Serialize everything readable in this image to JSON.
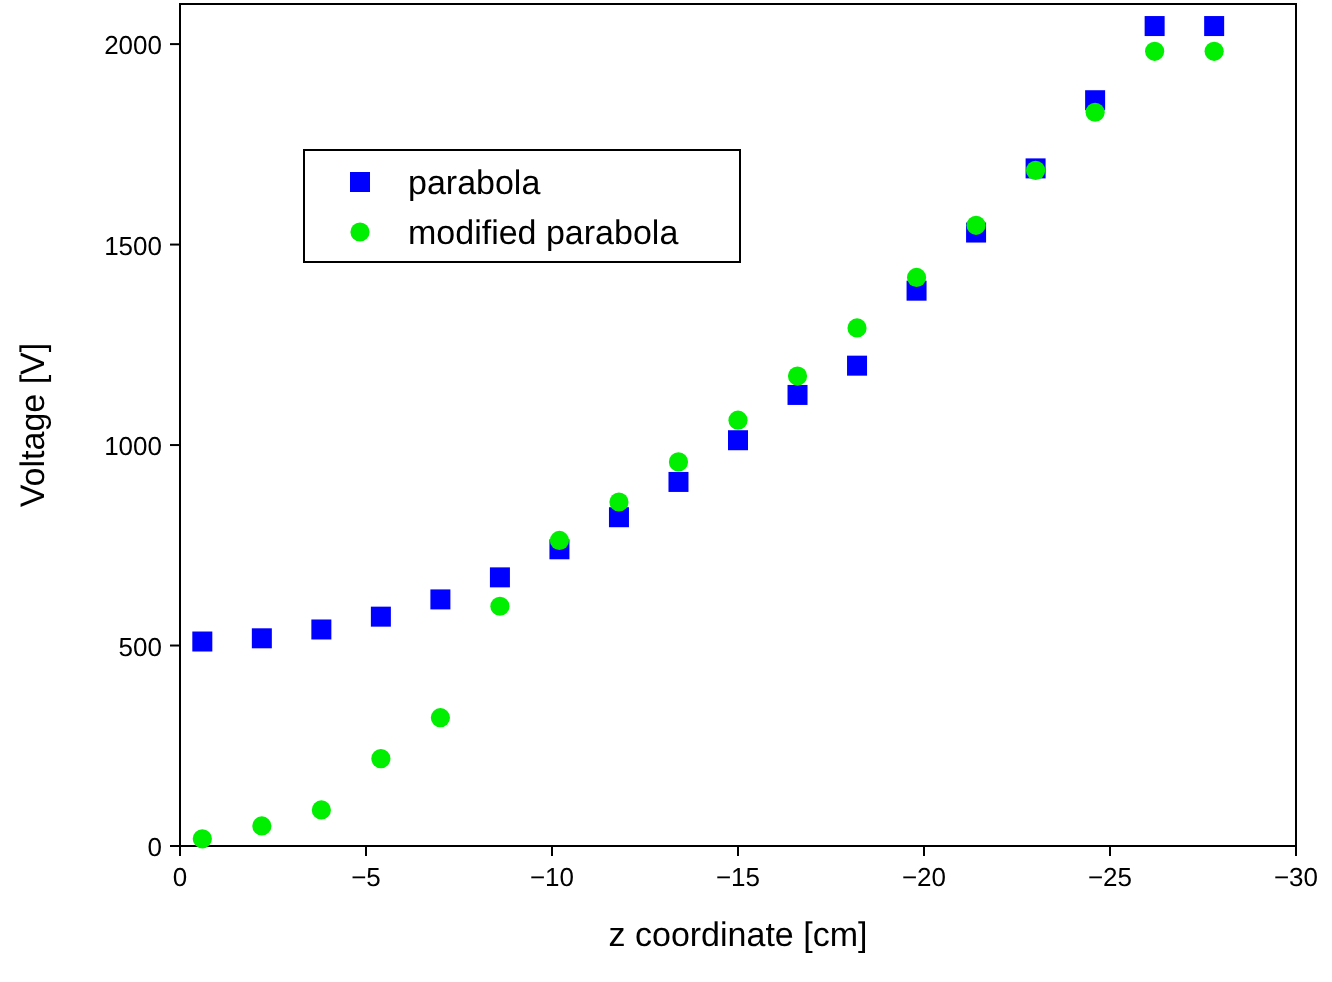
{
  "chart_data": {
    "type": "scatter",
    "xlabel": "z coordinate [cm]",
    "ylabel": "Voltage [V]",
    "x": [
      -0.6,
      -2.2,
      -3.8,
      -5.4,
      -7.0,
      -8.6,
      -10.2,
      -11.8,
      -13.4,
      -15.0,
      -16.6,
      -18.2,
      -19.8,
      -21.4,
      -23.0,
      -24.6,
      -26.2,
      -27.8
    ],
    "series": [
      {
        "name": "parabola",
        "color": "#0000ff",
        "marker": "square",
        "values": [
          510,
          518,
          540,
          572,
          615,
          670,
          740,
          820,
          908,
          1012,
          1125,
          1198,
          1385,
          1530,
          1690,
          1860,
          2045,
          2045
        ]
      },
      {
        "name": "modified parabola",
        "color": "#00ee00",
        "marker": "circle",
        "values": [
          18,
          50,
          90,
          218,
          320,
          598,
          762,
          858,
          958,
          1062,
          1172,
          1292,
          1418,
          1548,
          1685,
          1830,
          1982,
          1982
        ]
      }
    ],
    "xlim": [
      0,
      -30
    ],
    "xticks": [
      0,
      {
        "value": -5,
        "label": "−5"
      },
      {
        "value": -10,
        "label": "−10"
      },
      {
        "value": -15,
        "label": "−15"
      },
      {
        "value": -20,
        "label": "−20"
      },
      {
        "value": -25,
        "label": "−25"
      },
      {
        "value": -30,
        "label": "−30"
      }
    ],
    "ylim": [
      0,
      2100
    ],
    "yticks": [
      0,
      500,
      1000,
      1500,
      2000
    ],
    "grid": false,
    "legend": "top left"
  }
}
